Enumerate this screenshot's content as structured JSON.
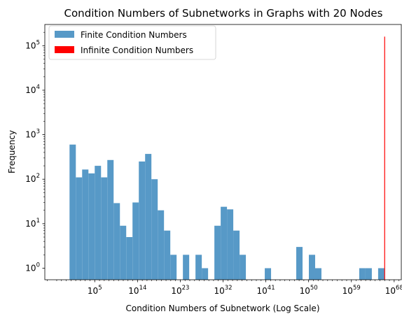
{
  "chart_data": {
    "type": "bar",
    "title": "Condition Numbers of Subnetworks in Graphs with 20 Nodes",
    "xlabel": "Condition Numbers of Subnetwork (Log Scale)",
    "ylabel": "Frequency",
    "x_scale": "log",
    "y_scale": "log",
    "xlim_log10": [
      -5.5,
      69.5
    ],
    "ylim": [
      0.55,
      300000
    ],
    "grid": false,
    "legend_position": "top-left",
    "x_ticks": [
      {
        "base": "10",
        "exp": "5",
        "log10": 5
      },
      {
        "base": "10",
        "exp": "14",
        "log10": 14
      },
      {
        "base": "10",
        "exp": "23",
        "log10": 23
      },
      {
        "base": "10",
        "exp": "32",
        "log10": 32
      },
      {
        "base": "10",
        "exp": "41",
        "log10": 41
      },
      {
        "base": "10",
        "exp": "50",
        "log10": 50
      },
      {
        "base": "10",
        "exp": "59",
        "log10": 59
      },
      {
        "base": "10",
        "exp": "68",
        "log10": 68
      }
    ],
    "y_ticks": [
      {
        "base": "10",
        "exp": "0",
        "value": 1
      },
      {
        "base": "10",
        "exp": "1",
        "value": 10
      },
      {
        "base": "10",
        "exp": "2",
        "value": 100
      },
      {
        "base": "10",
        "exp": "3",
        "value": 1000
      },
      {
        "base": "10",
        "exp": "4",
        "value": 10000
      },
      {
        "base": "10",
        "exp": "5",
        "value": 100000
      }
    ],
    "series": [
      {
        "name": "Finite Condition Numbers",
        "color": "#5799c7",
        "bin_log10_start": -0.3,
        "bin_log10_width": 1.325,
        "counts": [
          600,
          110,
          165,
          135,
          200,
          110,
          270,
          29,
          9,
          5,
          30,
          250,
          370,
          100,
          20,
          7,
          2,
          0,
          2,
          0,
          2,
          1,
          0,
          9,
          24,
          21,
          7,
          2,
          0,
          0,
          0,
          1,
          0,
          0,
          0,
          0,
          3,
          0,
          2,
          1,
          0,
          0,
          0,
          0,
          0,
          0,
          1,
          1,
          0,
          1
        ]
      },
      {
        "name": "Infinite Condition Numbers",
        "color": "#ff0000",
        "bars": [
          {
            "log10": 66.0,
            "value": 160000
          }
        ]
      }
    ]
  }
}
